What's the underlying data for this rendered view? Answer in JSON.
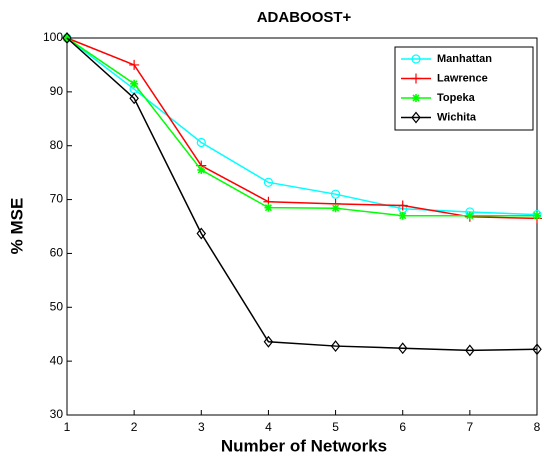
{
  "chart_data": {
    "type": "line",
    "title": "ADABOOST+",
    "xlabel": "Number of Networks",
    "ylabel": "% MSE",
    "x": [
      1,
      2,
      3,
      4,
      5,
      6,
      7,
      8
    ],
    "series": [
      {
        "name": "Manhattan",
        "color": "#00ffff",
        "marker": "circle",
        "values": [
          100,
          90.5,
          80.6,
          73.2,
          71,
          68.3,
          67.7,
          67.2
        ]
      },
      {
        "name": "Lawrence",
        "color": "#ff0000",
        "marker": "plus",
        "values": [
          100,
          95,
          76.3,
          69.6,
          69.2,
          68.9,
          66.8,
          66.5
        ]
      },
      {
        "name": "Topeka",
        "color": "#00ff00",
        "marker": "star",
        "values": [
          100,
          91.5,
          75.5,
          68.5,
          68.4,
          67,
          67,
          67
        ]
      },
      {
        "name": "Wichita",
        "color": "#000000",
        "marker": "diamond",
        "values": [
          100,
          88.8,
          63.7,
          43.6,
          42.8,
          42.4,
          42,
          42.2
        ]
      }
    ],
    "xlim": [
      1,
      8
    ],
    "xticks": [
      1,
      2,
      3,
      4,
      5,
      6,
      7,
      8
    ],
    "ylim": [
      30,
      100
    ],
    "yticks": [
      30,
      40,
      50,
      60,
      70,
      80,
      90,
      100
    ],
    "grid": false,
    "legend": "upper right"
  }
}
